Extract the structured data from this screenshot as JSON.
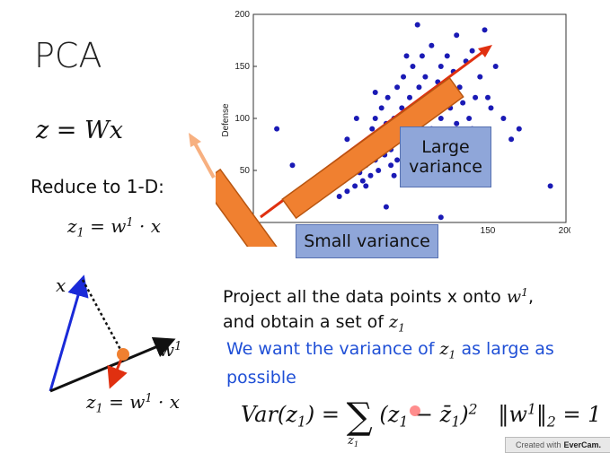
{
  "slide": {
    "title": "PCA",
    "eq_main": "z = Wx",
    "reduce_label": "Reduce to 1-D:",
    "eq_z1_lhs": "z",
    "eq_z1_sub": "1",
    "eq_z1_mid": " = w",
    "eq_z1_sup": "1",
    "eq_z1_rhs": " · x",
    "project_line1_pre": "Project all the data points x onto ",
    "project_w": "w",
    "project_sup": "1",
    "project_line1_post": ",",
    "project_line2_pre": "and obtain a set of ",
    "project_z": "z",
    "project_sub": "1",
    "want_pre": "We want the variance of ",
    "want_z": "z",
    "want_sub": "1",
    "want_post": " as large as possible",
    "formula_var": "Var(z",
    "formula_var_sub": "1",
    "formula_var_close": ") = ",
    "formula_sum": "∑",
    "formula_sum_sub": "z",
    "formula_sum_sub1": "1",
    "formula_term": "(z",
    "formula_term_sub": "1",
    "formula_minus": " − ",
    "formula_bar": "z̄",
    "formula_bar_sub": "1",
    "formula_close": ")",
    "formula_sq": "2",
    "formula_norm": "‖w",
    "formula_norm_sup": "1",
    "formula_norm_close": "‖",
    "formula_norm_sub": "2",
    "formula_norm_eq": " = 1",
    "diagram_x": "x",
    "diagram_w": "w",
    "diagram_w_sup": "1",
    "diagram_eq_lhs": "z",
    "diagram_eq_sub": "1",
    "diagram_eq_mid": " = w",
    "diagram_eq_sup": "1",
    "diagram_eq_rhs": " · x",
    "large_variance": "Large variance",
    "small_variance": "Small variance",
    "watermark_pre": "Created with",
    "watermark_brand": "EverCam."
  },
  "colors": {
    "points": "#1a1ab5",
    "orange": "#f08030",
    "red_arrow": "#e03010",
    "label_box": "#8fa6d9",
    "blue_text": "#1f4fd6"
  },
  "chart_data": {
    "type": "scatter",
    "ylabel": "Defense",
    "xlabel": "",
    "xlim": [
      0,
      200
    ],
    "ylim": [
      0,
      200
    ],
    "xticks": [
      150,
      200
    ],
    "yticks": [
      50,
      100,
      150,
      200
    ],
    "points": [
      [
        55,
        25
      ],
      [
        58,
        40
      ],
      [
        60,
        30
      ],
      [
        62,
        45
      ],
      [
        64,
        55
      ],
      [
        65,
        35
      ],
      [
        66,
        60
      ],
      [
        68,
        48
      ],
      [
        70,
        70
      ],
      [
        70,
        40
      ],
      [
        72,
        55
      ],
      [
        74,
        65
      ],
      [
        75,
        80
      ],
      [
        75,
        45
      ],
      [
        76,
        90
      ],
      [
        78,
        60
      ],
      [
        78,
        100
      ],
      [
        80,
        50
      ],
      [
        80,
        75
      ],
      [
        82,
        85
      ],
      [
        82,
        110
      ],
      [
        84,
        65
      ],
      [
        85,
        95
      ],
      [
        86,
        120
      ],
      [
        88,
        70
      ],
      [
        88,
        55
      ],
      [
        90,
        80
      ],
      [
        90,
        100
      ],
      [
        92,
        130
      ],
      [
        92,
        60
      ],
      [
        94,
        90
      ],
      [
        95,
        110
      ],
      [
        96,
        75
      ],
      [
        96,
        140
      ],
      [
        98,
        100
      ],
      [
        100,
        85
      ],
      [
        100,
        120
      ],
      [
        102,
        65
      ],
      [
        102,
        150
      ],
      [
        104,
        95
      ],
      [
        105,
        110
      ],
      [
        106,
        130
      ],
      [
        108,
        80
      ],
      [
        108,
        160
      ],
      [
        110,
        100
      ],
      [
        110,
        140
      ],
      [
        112,
        120
      ],
      [
        114,
        90
      ],
      [
        114,
        170
      ],
      [
        116,
        110
      ],
      [
        118,
        135
      ],
      [
        118,
        75
      ],
      [
        120,
        150
      ],
      [
        120,
        100
      ],
      [
        122,
        125
      ],
      [
        124,
        160
      ],
      [
        126,
        110
      ],
      [
        128,
        145
      ],
      [
        130,
        95
      ],
      [
        130,
        180
      ],
      [
        132,
        130
      ],
      [
        134,
        115
      ],
      [
        136,
        155
      ],
      [
        138,
        100
      ],
      [
        140,
        165
      ],
      [
        142,
        120
      ],
      [
        145,
        140
      ],
      [
        148,
        185
      ],
      [
        150,
        120
      ],
      [
        155,
        150
      ],
      [
        160,
        100
      ],
      [
        165,
        80
      ],
      [
        170,
        90
      ],
      [
        190,
        35
      ],
      [
        15,
        90
      ],
      [
        25,
        55
      ],
      [
        85,
        15
      ],
      [
        120,
        5
      ],
      [
        105,
        190
      ],
      [
        135,
        60
      ],
      [
        60,
        80
      ],
      [
        66,
        100
      ],
      [
        72,
        35
      ],
      [
        78,
        125
      ],
      [
        90,
        45
      ],
      [
        98,
        160
      ],
      [
        112,
        60
      ],
      [
        126,
        80
      ],
      [
        140,
        90
      ],
      [
        152,
        110
      ]
    ]
  }
}
